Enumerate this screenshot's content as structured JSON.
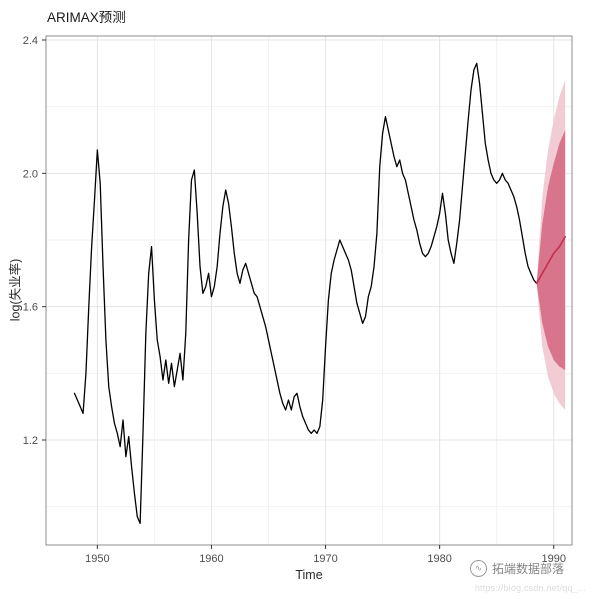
{
  "chart_data": {
    "type": "line",
    "title": "ARIMAX预测",
    "xlabel": "Time",
    "ylabel": "log(失业率)",
    "xlim": [
      1945.5,
      1991.6
    ],
    "ylim": [
      0.885,
      2.412
    ],
    "x_ticks": [
      1950,
      1960,
      1970,
      1980,
      1990
    ],
    "y_ticks": [
      1.2,
      1.6,
      2.0,
      2.4
    ],
    "x_minor_ticks": [
      1945,
      1955,
      1965,
      1975,
      1985
    ],
    "y_minor_ticks": [
      1.0,
      1.4,
      1.8,
      2.2
    ],
    "grid": true,
    "legend": "none",
    "panel": {
      "bg": "#ffffff",
      "border": "#8c8c8c",
      "grid_major": "#e4e4e4",
      "grid_minor": "#f2f2f2",
      "tick_color": "#333333",
      "axis_text_color": "#4d4d4d"
    },
    "series": [
      {
        "name": "observed",
        "color": "#000000",
        "width": 1.3,
        "x_start": 1948.0,
        "x_step": 0.25,
        "values": [
          1.34,
          1.32,
          1.3,
          1.28,
          1.4,
          1.6,
          1.78,
          1.92,
          2.07,
          1.97,
          1.72,
          1.5,
          1.36,
          1.3,
          1.25,
          1.22,
          1.18,
          1.26,
          1.15,
          1.21,
          1.12,
          1.04,
          0.97,
          0.95,
          1.22,
          1.52,
          1.7,
          1.78,
          1.62,
          1.5,
          1.45,
          1.38,
          1.44,
          1.37,
          1.43,
          1.36,
          1.41,
          1.46,
          1.38,
          1.52,
          1.8,
          1.98,
          2.01,
          1.88,
          1.72,
          1.64,
          1.66,
          1.7,
          1.63,
          1.66,
          1.72,
          1.82,
          1.9,
          1.95,
          1.91,
          1.84,
          1.76,
          1.7,
          1.67,
          1.71,
          1.73,
          1.7,
          1.67,
          1.64,
          1.63,
          1.6,
          1.57,
          1.54,
          1.5,
          1.46,
          1.42,
          1.38,
          1.34,
          1.31,
          1.29,
          1.32,
          1.29,
          1.33,
          1.34,
          1.3,
          1.27,
          1.25,
          1.23,
          1.22,
          1.23,
          1.22,
          1.24,
          1.32,
          1.48,
          1.62,
          1.7,
          1.74,
          1.77,
          1.8,
          1.78,
          1.76,
          1.74,
          1.71,
          1.66,
          1.61,
          1.58,
          1.55,
          1.57,
          1.63,
          1.66,
          1.72,
          1.82,
          2.02,
          2.12,
          2.17,
          2.13,
          2.09,
          2.05,
          2.02,
          2.04,
          2.0,
          1.98,
          1.94,
          1.9,
          1.86,
          1.83,
          1.79,
          1.76,
          1.75,
          1.76,
          1.78,
          1.81,
          1.84,
          1.88,
          1.94,
          1.88,
          1.8,
          1.76,
          1.73,
          1.79,
          1.86,
          1.96,
          2.06,
          2.16,
          2.25,
          2.31,
          2.33,
          2.27,
          2.18,
          2.09,
          2.04,
          2.0,
          1.98,
          1.97,
          1.98,
          2.0,
          1.98,
          1.97,
          1.95,
          1.93,
          1.9,
          1.86,
          1.81,
          1.76,
          1.72,
          1.7,
          1.68,
          1.67
        ]
      },
      {
        "name": "forecast_mean",
        "color": "#c5304a",
        "width": 1.6,
        "x_start": 1988.5,
        "x_step": 0.5,
        "values": [
          1.67,
          1.7,
          1.73,
          1.76,
          1.78,
          1.81
        ]
      }
    ],
    "bands": [
      {
        "name": "95% prediction interval",
        "color": "#f0c6d0",
        "opacity": 0.9,
        "x_start": 1988.5,
        "x_step": 0.5,
        "lower": [
          1.67,
          1.48,
          1.39,
          1.34,
          1.31,
          1.29
        ],
        "upper": [
          1.67,
          1.93,
          2.07,
          2.16,
          2.23,
          2.28
        ]
      },
      {
        "name": "80% prediction interval",
        "color": "#d4647e",
        "opacity": 0.85,
        "x_start": 1988.5,
        "x_step": 0.5,
        "lower": [
          1.67,
          1.55,
          1.48,
          1.44,
          1.42,
          1.41
        ],
        "upper": [
          1.67,
          1.85,
          1.96,
          2.03,
          2.09,
          2.13
        ]
      }
    ]
  },
  "watermark": {
    "text": "拓端数据部落",
    "url": "https://blog.csdn.net/qq_...",
    "icon": "wave-logo-icon"
  }
}
